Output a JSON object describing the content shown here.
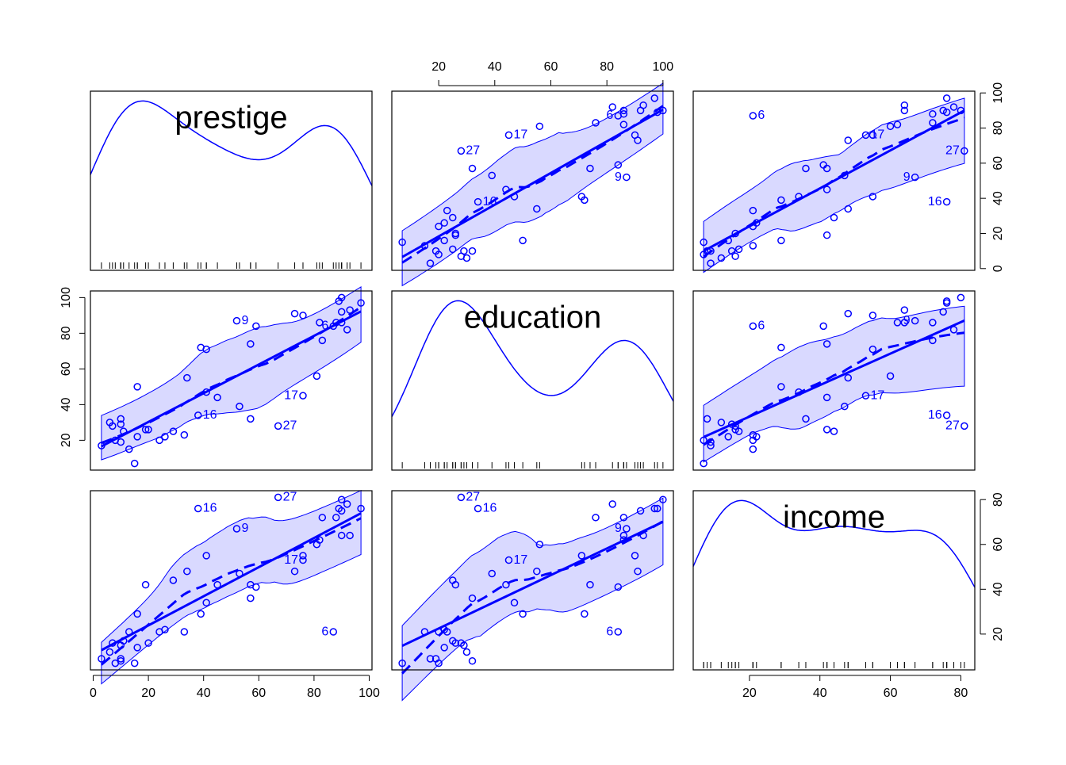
{
  "chart_data": {
    "type": "scatter-matrix",
    "color": "#0000ff",
    "variables": [
      {
        "name": "prestige",
        "values": [
          82,
          83,
          90,
          76,
          90,
          87,
          93,
          90,
          52,
          88,
          57,
          89,
          97,
          59,
          73,
          38,
          76,
          81,
          45,
          92,
          39,
          34,
          41,
          16,
          33,
          53,
          67,
          57,
          26,
          29,
          10,
          15,
          19,
          10,
          13,
          24,
          20,
          7,
          3,
          16,
          6,
          11,
          8,
          41,
          10
        ],
        "lim": [
          -1,
          101
        ],
        "ticks": [
          0,
          20,
          40,
          60,
          80,
          100
        ]
      },
      {
        "name": "education",
        "values": [
          86,
          76,
          92,
          90,
          86,
          84,
          93,
          100,
          87,
          86,
          74,
          98,
          97,
          84,
          91,
          34,
          45,
          56,
          44,
          82,
          72,
          55,
          71,
          50,
          23,
          39,
          28,
          32,
          22,
          25,
          29,
          7,
          26,
          19,
          15,
          20,
          26,
          28,
          17,
          22,
          30,
          25,
          20,
          47,
          32
        ],
        "lim": [
          3.28,
          103.72
        ],
        "ticks": [
          20,
          40,
          60,
          80,
          100
        ]
      },
      {
        "name": "income",
        "values": [
          62,
          72,
          75,
          55,
          64,
          21,
          64,
          80,
          67,
          72,
          42,
          76,
          76,
          41,
          48,
          76,
          53,
          60,
          42,
          78,
          29,
          48,
          55,
          29,
          21,
          47,
          81,
          36,
          22,
          44,
          15,
          7,
          42,
          9,
          21,
          21,
          16,
          16,
          9,
          14,
          12,
          17,
          7,
          34,
          8
        ],
        "lim": [
          4.04,
          83.96
        ],
        "ticks": [
          20,
          40,
          60,
          80
        ]
      }
    ],
    "labels": [
      null,
      null,
      null,
      null,
      null,
      "6",
      null,
      null,
      "9",
      null,
      null,
      null,
      null,
      null,
      null,
      "16",
      "17",
      null,
      null,
      null,
      null,
      null,
      null,
      null,
      null,
      null,
      "27",
      null,
      null,
      null,
      null,
      null,
      null,
      null,
      null,
      null,
      null,
      null,
      null,
      null,
      null,
      null,
      null,
      null,
      null
    ]
  }
}
